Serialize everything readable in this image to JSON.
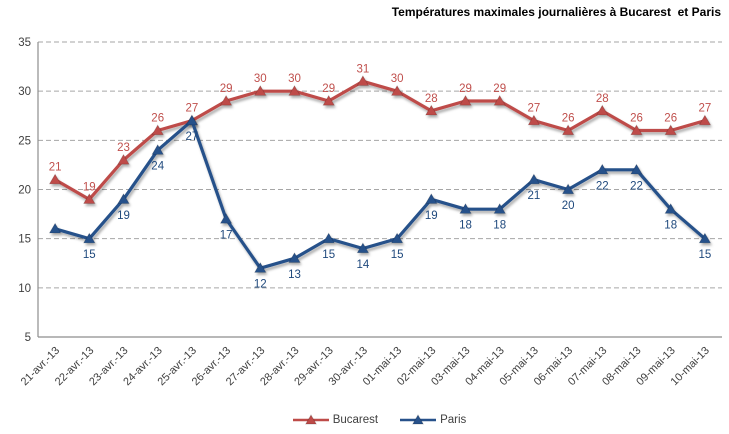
{
  "chart": {
    "title": "Températures maximales journalières à Bucarest  et Paris",
    "legend": {
      "position": "bottom",
      "items": [
        "Bucarest",
        "Paris"
      ]
    }
  },
  "chart_data": {
    "type": "line",
    "title": "Températures maximales journalières à Bucarest et Paris",
    "xlabel": "",
    "ylabel": "",
    "ylim": [
      5,
      35
    ],
    "yticks": [
      5,
      10,
      15,
      20,
      25,
      30,
      35
    ],
    "grid": "dashed-horizontal",
    "legend_position": "bottom",
    "axis_color": "#8E8E8E",
    "gridline_color": "#A6A6A6",
    "tick_label_color": "#3F3F3F",
    "categories": [
      "21-avr.-13",
      "22-avr.-13",
      "23-avr.-13",
      "24-avr.-13",
      "25-avr.-13",
      "26-avr.-13",
      "27-avr.-13",
      "28-avr.-13",
      "29-avr.-13",
      "30-avr.-13",
      "01-mai-13",
      "02-mai-13",
      "03-mai-13",
      "04-mai-13",
      "05-mai-13",
      "06-mai-13",
      "07-mai-13",
      "08-mai-13",
      "09-mai-13",
      "10-mai-13"
    ],
    "series": [
      {
        "name": "Bucarest",
        "color": "#BE4B48",
        "label_color": "#C0504D",
        "marker": "triangle",
        "label_position": "above",
        "values": [
          21,
          19,
          23,
          26,
          27,
          29,
          30,
          30,
          29,
          31,
          30,
          28,
          29,
          29,
          27,
          26,
          28,
          26,
          26,
          27
        ],
        "labels": [
          "21",
          "19",
          "23",
          "26",
          "27",
          "29",
          "30",
          "30",
          "29",
          "31",
          "30",
          "28",
          "29",
          "29",
          "27",
          "26",
          "28",
          "26",
          "26",
          "27"
        ]
      },
      {
        "name": "Paris",
        "color": "#27518A",
        "label_color": "#1F497D",
        "marker": "triangle",
        "label_position": "below",
        "values": [
          16,
          15,
          19,
          24,
          27,
          17,
          12,
          13,
          15,
          14,
          15,
          19,
          18,
          18,
          21,
          20,
          22,
          22,
          18,
          15
        ],
        "labels": [
          "",
          "15",
          "19",
          "24",
          "27",
          "17",
          "12",
          "13",
          "15",
          "14",
          "15",
          "19",
          "18",
          "18",
          "21",
          "20",
          "22",
          "22",
          "18",
          "15"
        ]
      }
    ]
  }
}
